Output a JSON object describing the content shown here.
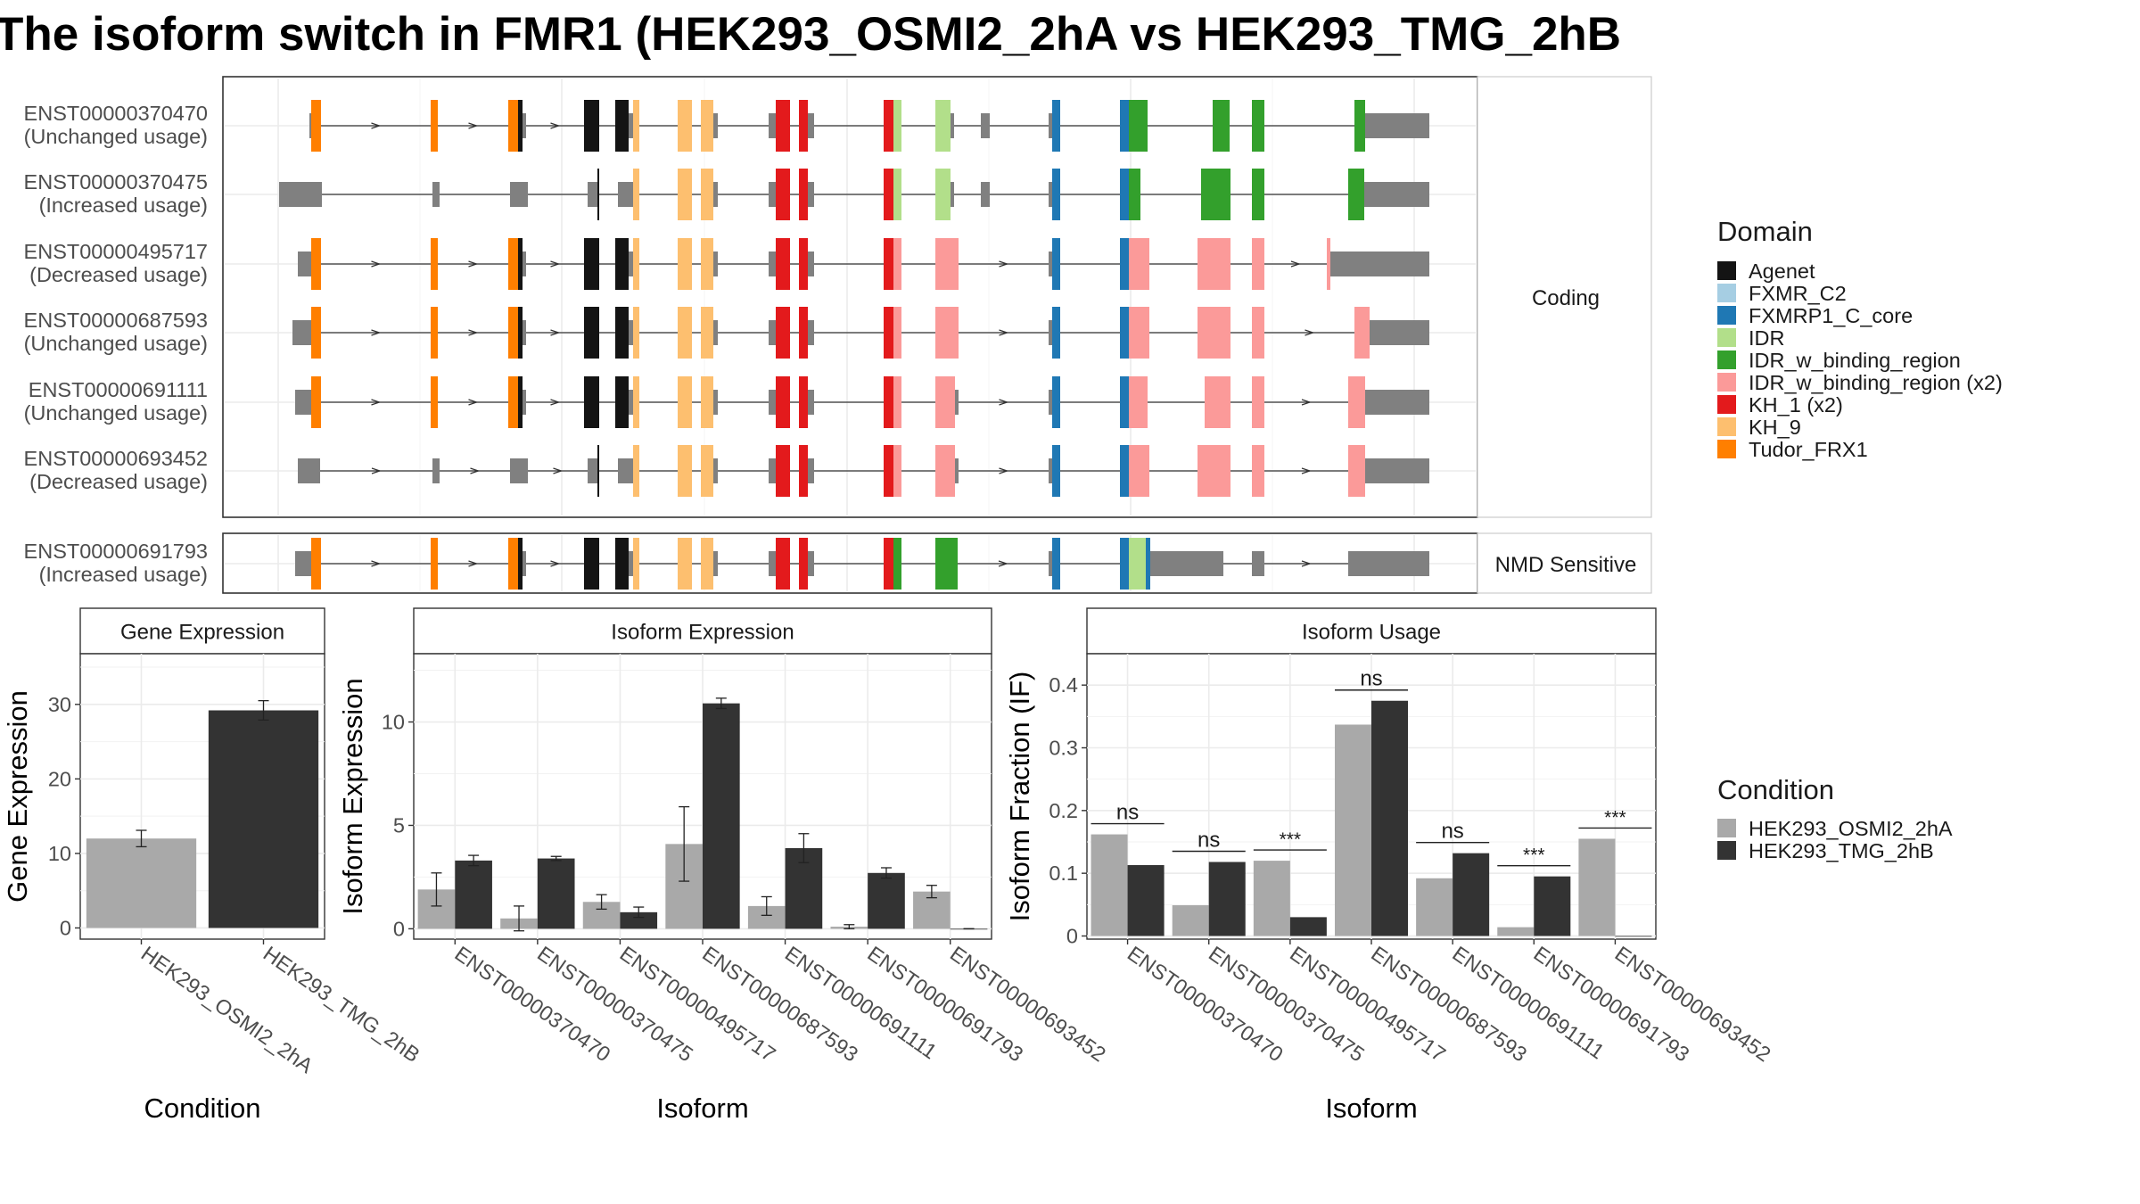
{
  "title": "The isoform switch in FMR1 (HEK293_OSMI2_2hA vs HEK293_TMG_2hB",
  "colors": {
    "Agenet": "#141414",
    "FXMR_C2": "#a6cee3",
    "FXMRP1_C_core": "#1f78b4",
    "IDR": "#b2df8a",
    "IDR_w_binding_region": "#33a02c",
    "IDR_w_binding_region (x2)": "#fb9a99",
    "KH_1 (x2)": "#e31a1c",
    "KH_9": "#fdbf6f",
    "Tudor_FRX1": "#ff7f00",
    "noncoding": "#808080",
    "cond_a": "#a9a9a9",
    "cond_b": "#333333"
  },
  "structure": {
    "coding_label": "Coding",
    "nmd_label": "NMD Sensitive",
    "isoforms": [
      {
        "id": "ENST00000370470",
        "usage": "(Unchanged usage)",
        "group": "coding"
      },
      {
        "id": "ENST00000370475",
        "usage": "(Increased usage)",
        "group": "coding"
      },
      {
        "id": "ENST00000495717",
        "usage": "(Decreased usage)",
        "group": "coding"
      },
      {
        "id": "ENST00000687593",
        "usage": "(Unchanged usage)",
        "group": "coding"
      },
      {
        "id": "ENST00000691111",
        "usage": "(Unchanged usage)",
        "group": "coding"
      },
      {
        "id": "ENST00000693452",
        "usage": "(Decreased usage)",
        "group": "coding"
      },
      {
        "id": "ENST00000691793",
        "usage": "(Increased usage)",
        "group": "nmd"
      }
    ]
  },
  "legend_domain": {
    "title": "Domain",
    "items": [
      "Agenet",
      "FXMR_C2",
      "FXMRP1_C_core",
      "IDR",
      "IDR_w_binding_region",
      "IDR_w_binding_region (x2)",
      "KH_1 (x2)",
      "KH_9",
      "Tudor_FRX1"
    ]
  },
  "legend_condition": {
    "title": "Condition",
    "items": [
      "HEK293_OSMI2_2hA",
      "HEK293_TMG_2hB"
    ]
  },
  "chart_data": [
    {
      "type": "bar",
      "title": "Gene Expression",
      "xlabel": "Condition",
      "ylabel": "Gene Expression",
      "categories": [
        "HEK293_OSMI2_2hA",
        "HEK293_TMG_2hB"
      ],
      "values": [
        12.0,
        29.2
      ],
      "errors": [
        1.1,
        1.3
      ],
      "ylim": [
        -1.5,
        36.8
      ],
      "yticks": [
        0,
        10,
        20,
        30
      ]
    },
    {
      "type": "bar",
      "title": "Isoform Expression",
      "xlabel": "Isoform",
      "ylabel": "Isoform Expression",
      "categories": [
        "ENST00000370470",
        "ENST00000370475",
        "ENST00000495717",
        "ENST00000687593",
        "ENST00000691111",
        "ENST00000691793",
        "ENST00000693452"
      ],
      "series": [
        {
          "name": "HEK293_OSMI2_2hA",
          "values": [
            1.9,
            0.5,
            1.3,
            4.1,
            1.1,
            0.1,
            1.8
          ],
          "errors": [
            0.8,
            0.6,
            0.35,
            1.8,
            0.45,
            0.1,
            0.3
          ]
        },
        {
          "name": "HEK293_TMG_2hB",
          "values": [
            3.3,
            3.4,
            0.8,
            10.9,
            3.9,
            2.7,
            0.0
          ],
          "errors": [
            0.25,
            0.1,
            0.25,
            0.25,
            0.7,
            0.25,
            0.0
          ]
        }
      ],
      "ylim": [
        -0.5,
        13.3
      ],
      "yticks": [
        0,
        5,
        10
      ]
    },
    {
      "type": "bar",
      "title": "Isoform Usage",
      "xlabel": "Isoform",
      "ylabel": "Isoform Fraction (IF)",
      "categories": [
        "ENST00000370470",
        "ENST00000370475",
        "ENST00000495717",
        "ENST00000687593",
        "ENST00000691111",
        "ENST00000691793",
        "ENST00000693452"
      ],
      "series": [
        {
          "name": "HEK293_OSMI2_2hA",
          "values": [
            0.162,
            0.049,
            0.12,
            0.337,
            0.092,
            0.014,
            0.155
          ]
        },
        {
          "name": "HEK293_TMG_2hB",
          "values": [
            0.113,
            0.118,
            0.03,
            0.375,
            0.132,
            0.095,
            0.0
          ]
        }
      ],
      "significance": [
        "ns",
        "ns",
        "***",
        "ns",
        "ns",
        "***",
        "***"
      ],
      "ylim": [
        -0.005,
        0.45
      ],
      "yticks": [
        0.0,
        0.1,
        0.2,
        0.3,
        0.4
      ]
    }
  ]
}
